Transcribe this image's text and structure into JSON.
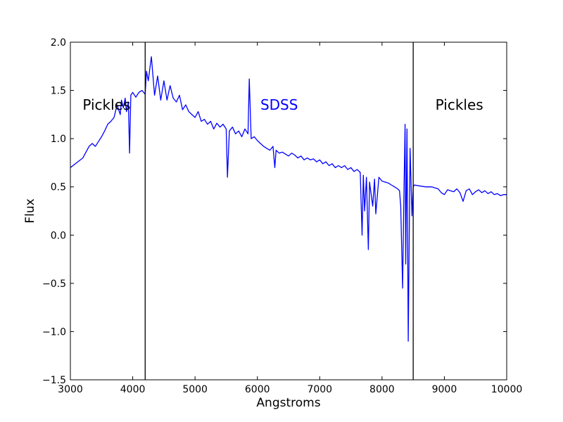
{
  "chart_data": {
    "type": "line",
    "xlabel": "Angstroms",
    "ylabel": "Flux",
    "xlim": [
      3000,
      10000
    ],
    "ylim": [
      -1.5,
      2.0
    ],
    "xticks": [
      3000,
      4000,
      5000,
      6000,
      7000,
      8000,
      9000,
      10000
    ],
    "yticks": [
      -1.5,
      -1.0,
      -0.5,
      0.0,
      0.5,
      1.0,
      1.5,
      2.0
    ],
    "xtick_labels": [
      "3000",
      "4000",
      "5000",
      "6000",
      "7000",
      "8000",
      "9000",
      "10000"
    ],
    "ytick_labels": [
      "−1.5",
      "−1.0",
      "−0.5",
      "0.0",
      "0.5",
      "1.0",
      "1.5",
      "2.0"
    ],
    "grid": false,
    "boundaries": [
      4200,
      8500
    ],
    "line_color": "#0000ff",
    "boundary_color": "#000000",
    "annotations": [
      {
        "text": "Pickles",
        "x": 3580,
        "y": 1.35,
        "color": "#000000"
      },
      {
        "text": "SDSS",
        "x": 6350,
        "y": 1.35,
        "color": "#0000ff"
      },
      {
        "text": "Pickles",
        "x": 9240,
        "y": 1.35,
        "color": "#000000"
      }
    ],
    "series": [
      {
        "x": [
          3000,
          3100,
          3200,
          3300,
          3350,
          3400,
          3450,
          3500,
          3550,
          3600,
          3650,
          3700,
          3750,
          3800,
          3820,
          3850,
          3880,
          3900,
          3930,
          3950,
          3970,
          4000,
          4050,
          4100,
          4150,
          4200,
          4220,
          4250,
          4300,
          4350,
          4400,
          4450,
          4500,
          4550,
          4600,
          4650,
          4700,
          4750,
          4800,
          4850,
          4900,
          4950,
          5000,
          5050,
          5100,
          5150,
          5200,
          5250,
          5300,
          5350,
          5400,
          5450,
          5500,
          5520,
          5550,
          5600,
          5650,
          5700,
          5750,
          5800,
          5850,
          5870,
          5900,
          5950,
          6000,
          6050,
          6100,
          6150,
          6200,
          6250,
          6280,
          6300,
          6350,
          6400,
          6450,
          6500,
          6550,
          6600,
          6650,
          6700,
          6750,
          6800,
          6850,
          6900,
          6950,
          7000,
          7050,
          7100,
          7150,
          7200,
          7250,
          7300,
          7350,
          7400,
          7450,
          7500,
          7550,
          7600,
          7650,
          7680,
          7700,
          7720,
          7750,
          7780,
          7800,
          7850,
          7880,
          7900,
          7950,
          8000,
          8050,
          8100,
          8150,
          8200,
          8250,
          8280,
          8300,
          8330,
          8350,
          8370,
          8380,
          8400,
          8420,
          8450,
          8480,
          8500,
          8520,
          8600,
          8700,
          8800,
          8850,
          8900,
          8950,
          9000,
          9050,
          9100,
          9150,
          9200,
          9250,
          9300,
          9350,
          9400,
          9450,
          9500,
          9550,
          9600,
          9650,
          9700,
          9750,
          9800,
          9850,
          9900,
          9950,
          10000
        ],
        "y": [
          0.7,
          0.75,
          0.8,
          0.92,
          0.95,
          0.92,
          0.97,
          1.02,
          1.08,
          1.15,
          1.18,
          1.22,
          1.35,
          1.25,
          1.4,
          1.32,
          1.42,
          1.28,
          1.38,
          0.85,
          1.45,
          1.48,
          1.43,
          1.48,
          1.5,
          1.46,
          1.7,
          1.6,
          1.85,
          1.45,
          1.65,
          1.4,
          1.6,
          1.4,
          1.55,
          1.42,
          1.38,
          1.45,
          1.3,
          1.35,
          1.28,
          1.25,
          1.22,
          1.28,
          1.18,
          1.2,
          1.15,
          1.18,
          1.1,
          1.16,
          1.12,
          1.15,
          1.1,
          0.6,
          1.08,
          1.12,
          1.05,
          1.08,
          1.02,
          1.1,
          1.05,
          1.62,
          1.0,
          1.02,
          0.98,
          0.95,
          0.92,
          0.9,
          0.88,
          0.92,
          0.7,
          0.88,
          0.85,
          0.86,
          0.84,
          0.82,
          0.85,
          0.83,
          0.8,
          0.82,
          0.78,
          0.8,
          0.78,
          0.79,
          0.76,
          0.78,
          0.74,
          0.76,
          0.72,
          0.74,
          0.7,
          0.72,
          0.7,
          0.72,
          0.68,
          0.7,
          0.66,
          0.68,
          0.65,
          0.0,
          0.62,
          0.25,
          0.6,
          -0.15,
          0.55,
          0.3,
          0.58,
          0.22,
          0.6,
          0.56,
          0.55,
          0.54,
          0.52,
          0.5,
          0.48,
          0.46,
          0.3,
          -0.55,
          0.4,
          1.15,
          -0.3,
          1.1,
          -1.1,
          0.9,
          0.2,
          0.5,
          0.52,
          0.51,
          0.5,
          0.5,
          0.49,
          0.48,
          0.44,
          0.42,
          0.47,
          0.46,
          0.45,
          0.48,
          0.44,
          0.35,
          0.46,
          0.48,
          0.42,
          0.45,
          0.47,
          0.44,
          0.46,
          0.43,
          0.45,
          0.42,
          0.43,
          0.41,
          0.42,
          0.42
        ]
      }
    ]
  }
}
